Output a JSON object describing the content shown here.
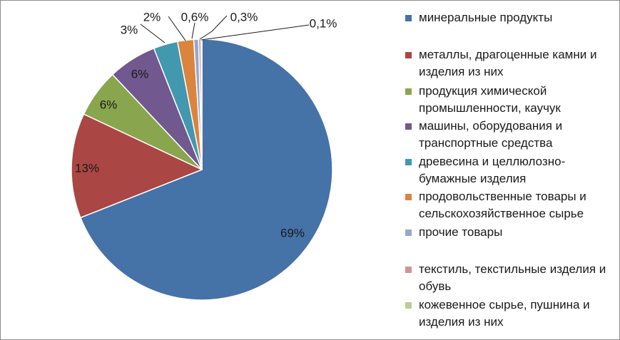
{
  "chart_data": {
    "type": "pie",
    "title": "",
    "slices": [
      {
        "label": "минеральные продукты",
        "value": 69,
        "value_label": "69%",
        "color": "#4572A7"
      },
      {
        "label": "металлы, драгоценные камни и изделия из них",
        "value": 13,
        "value_label": "13%",
        "color": "#AA4643"
      },
      {
        "label": "продукция химической промышленности, каучук",
        "value": 6,
        "value_label": "6%",
        "color": "#89A54E"
      },
      {
        "label": "машины, оборудования и транспортные средства",
        "value": 6,
        "value_label": "6%",
        "color": "#71588F"
      },
      {
        "label": "древесина и целлюлозно-бумажные изделия",
        "value": 3,
        "value_label": "3%",
        "color": "#4198AF"
      },
      {
        "label": "продовольственные товары и сельскохозяйственное сырье",
        "value": 2,
        "value_label": "2%",
        "color": "#DB843D"
      },
      {
        "label": "прочие товары",
        "value": 0.6,
        "value_label": "0,6%",
        "color": "#93A9CF"
      },
      {
        "label": "текстиль, текстильные изделия и обувь",
        "value": 0.3,
        "value_label": "0,3%",
        "color": "#D19392"
      },
      {
        "label": "кожевенное сырье, пушнина и изделия из них",
        "value": 0.1,
        "value_label": "0,1%",
        "color": "#B9CD96"
      }
    ],
    "legend_position": "right"
  }
}
